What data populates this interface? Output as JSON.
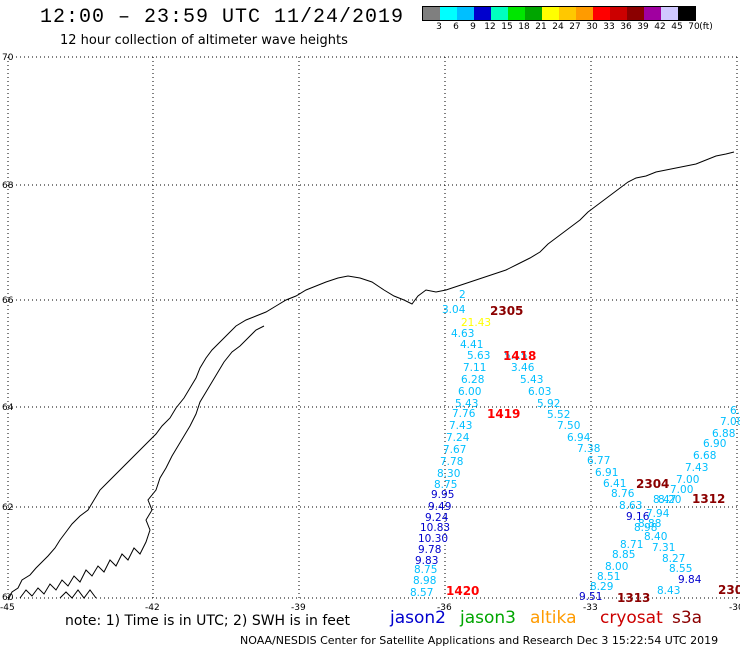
{
  "header": {
    "title": "12:00 – 23:59 UTC 11/24/2019",
    "subtitle": "12 hour collection of altimeter wave heights"
  },
  "legend": {
    "unit": "(ft)",
    "colors": [
      "#7f7f7f",
      "#00ffff",
      "#00bfff",
      "#0000cd",
      "#00ffbf",
      "#00e600",
      "#00a500",
      "#ffff00",
      "#ffc800",
      "#ff9b00",
      "#ff0000",
      "#cc0000",
      "#8b0000",
      "#a000a0",
      "#d0c8ff",
      "#000000"
    ],
    "labels": [
      "3",
      "6",
      "9",
      "12",
      "15",
      "18",
      "21",
      "24",
      "27",
      "30",
      "33",
      "36",
      "39",
      "42",
      "45",
      "70"
    ]
  },
  "map": {
    "lat_labels": [
      "70",
      "68",
      "66",
      "64",
      "62",
      "60"
    ],
    "lon_labels": [
      "-45",
      "-42",
      "-39",
      "-36",
      "-33",
      "-30"
    ],
    "track_values": [
      {
        "t": "2",
        "c": "#00bfff"
      },
      {
        "t": "3.04",
        "c": "#00bfff"
      },
      {
        "t": "21.43",
        "c": "#ffff00"
      },
      {
        "t": "4.63",
        "c": "#00bfff"
      },
      {
        "t": "4.41",
        "c": "#00bfff"
      },
      {
        "t": "5.63",
        "c": "#00bfff"
      },
      {
        "t": "5.15",
        "c": "#00bfff"
      },
      {
        "t": "7.11",
        "c": "#00bfff"
      },
      {
        "t": "3.46",
        "c": "#00bfff"
      },
      {
        "t": "6.28",
        "c": "#00bfff"
      },
      {
        "t": "5.43",
        "c": "#00bfff"
      },
      {
        "t": "6.00",
        "c": "#00bfff"
      },
      {
        "t": "6.03",
        "c": "#00bfff"
      },
      {
        "t": "5.43",
        "c": "#00bfff"
      },
      {
        "t": "5.92",
        "c": "#00bfff"
      },
      {
        "t": "7.76",
        "c": "#00bfff"
      },
      {
        "t": "5.52",
        "c": "#00bfff"
      },
      {
        "t": "7.43",
        "c": "#00bfff"
      },
      {
        "t": "7.50",
        "c": "#00bfff"
      },
      {
        "t": "7.24",
        "c": "#00bfff"
      },
      {
        "t": "6.94",
        "c": "#00bfff"
      },
      {
        "t": "7.67",
        "c": "#00bfff"
      },
      {
        "t": "7.38",
        "c": "#00bfff"
      },
      {
        "t": "7.78",
        "c": "#00bfff"
      },
      {
        "t": "6.77",
        "c": "#00bfff"
      },
      {
        "t": "8.30",
        "c": "#00bfff"
      },
      {
        "t": "6.91",
        "c": "#00bfff"
      },
      {
        "t": "8.75",
        "c": "#00bfff"
      },
      {
        "t": "6.41",
        "c": "#00bfff"
      },
      {
        "t": "9.95",
        "c": "#0000cd"
      },
      {
        "t": "8.76",
        "c": "#00bfff"
      },
      {
        "t": "9.49",
        "c": "#0000cd"
      },
      {
        "t": "8.63",
        "c": "#00bfff"
      },
      {
        "t": "9.24",
        "c": "#0000cd"
      },
      {
        "t": "9.16",
        "c": "#0000cd"
      },
      {
        "t": "10.83",
        "c": "#0000cd"
      },
      {
        "t": "8.98",
        "c": "#00bfff"
      },
      {
        "t": "10.30",
        "c": "#0000cd"
      },
      {
        "t": "8.88",
        "c": "#00bfff"
      },
      {
        "t": "9.78",
        "c": "#0000cd"
      },
      {
        "t": "8.71",
        "c": "#00bfff"
      },
      {
        "t": "9.83",
        "c": "#0000cd"
      },
      {
        "t": "8.85",
        "c": "#00bfff"
      },
      {
        "t": "8.75",
        "c": "#00bfff"
      },
      {
        "t": "8.00",
        "c": "#00bfff"
      },
      {
        "t": "8.98",
        "c": "#00bfff"
      },
      {
        "t": "8.51",
        "c": "#00bfff"
      },
      {
        "t": "8.57",
        "c": "#00bfff"
      },
      {
        "t": "8.29",
        "c": "#00bfff"
      },
      {
        "t": "9.51",
        "c": "#0000cd"
      },
      {
        "t": "6.",
        "c": "#00bfff"
      },
      {
        "t": "7.08",
        "c": "#00bfff"
      },
      {
        "t": "6.88",
        "c": "#00bfff"
      },
      {
        "t": "6.90",
        "c": "#00bfff"
      },
      {
        "t": "6.68",
        "c": "#00bfff"
      },
      {
        "t": "7.43",
        "c": "#00bfff"
      },
      {
        "t": "7.00",
        "c": "#00bfff"
      },
      {
        "t": "7.00",
        "c": "#00bfff"
      },
      {
        "t": "8.20",
        "c": "#00bfff"
      },
      {
        "t": "8.47",
        "c": "#00bfff"
      },
      {
        "t": "7.94",
        "c": "#00bfff"
      },
      {
        "t": "8.40",
        "c": "#00bfff"
      },
      {
        "t": "7.31",
        "c": "#00bfff"
      },
      {
        "t": "8.27",
        "c": "#00bfff"
      },
      {
        "t": "8.55",
        "c": "#00bfff"
      },
      {
        "t": "9.84",
        "c": "#0000cd"
      },
      {
        "t": "8.43",
        "c": "#00bfff"
      }
    ],
    "pass_labels": [
      {
        "t": "2305",
        "c": "#8b0000"
      },
      {
        "t": "1418",
        "c": "#ff0000"
      },
      {
        "t": "1419",
        "c": "#ff0000"
      },
      {
        "t": "2304",
        "c": "#8b0000"
      },
      {
        "t": "1312",
        "c": "#8b0000"
      },
      {
        "t": "1420",
        "c": "#ff0000"
      },
      {
        "t": "1313",
        "c": "#8b0000"
      },
      {
        "t": "230",
        "c": "#8b0000"
      }
    ]
  },
  "note": {
    "text": "note:  1) Time is in UTC;  2) SWH is in feet",
    "satellites": [
      {
        "name": "jason2",
        "color": "#0000cd"
      },
      {
        "name": "jason3",
        "color": "#00a500"
      },
      {
        "name": "altika",
        "color": "#ff9b00"
      },
      {
        "name": "cryosat",
        "color": "#cc0000"
      },
      {
        "name": "s3a",
        "color": "#8b0000"
      }
    ]
  },
  "footer": "NOAA/NESDIS Center for Satellite Applications and Research   Dec  3 15:22:54 UTC 2019"
}
